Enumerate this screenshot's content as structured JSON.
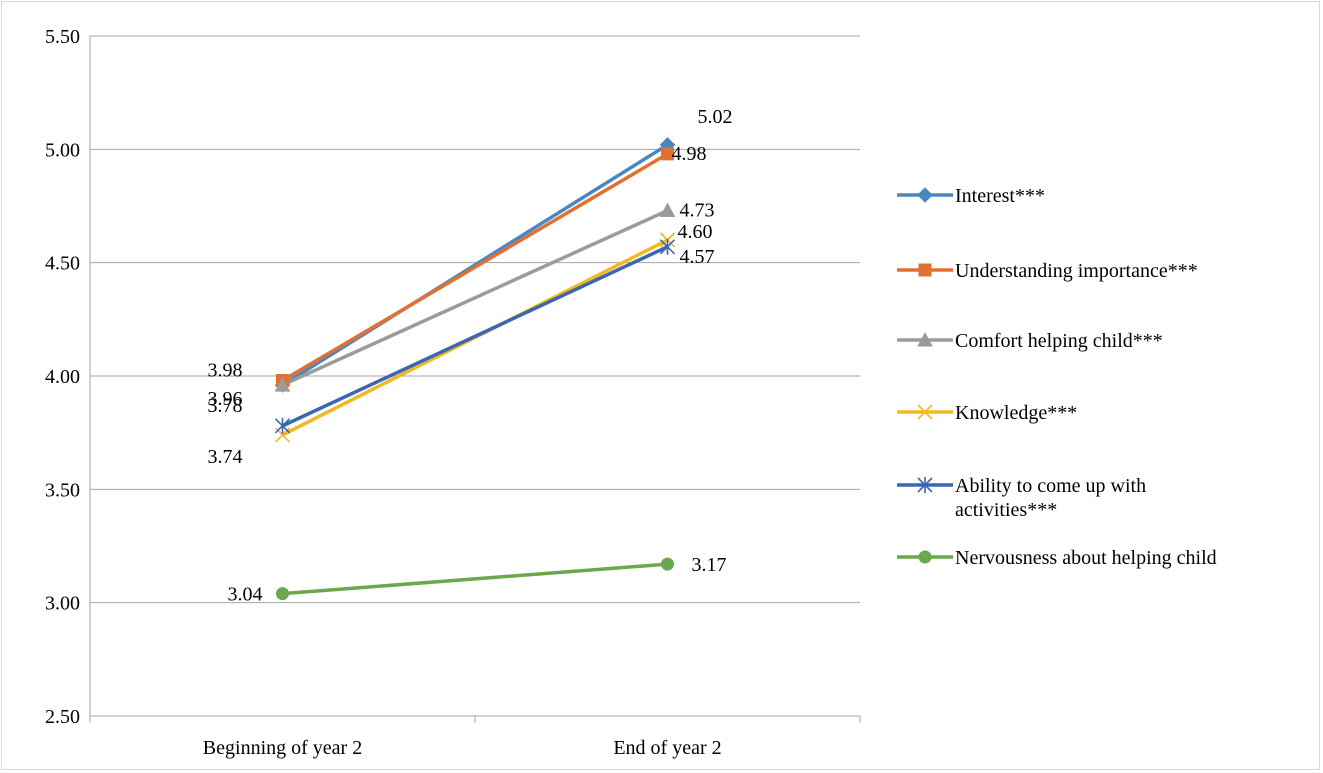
{
  "chart_data": {
    "type": "line",
    "title": "",
    "xlabel": "",
    "ylabel": "",
    "categories": [
      "Beginning of year 2",
      "End of year 2"
    ],
    "ylim": [
      2.5,
      5.5
    ],
    "yticks": [
      "2.50",
      "3.00",
      "3.50",
      "4.00",
      "4.50",
      "5.00",
      "5.50"
    ],
    "grid": true,
    "legend_position": "right",
    "series": [
      {
        "name": "Interest***",
        "values": [
          3.96,
          5.02
        ],
        "labels": [
          "",
          "5.02"
        ],
        "color": "#4a86c0",
        "marker": "diamond"
      },
      {
        "name": "Understanding importance***",
        "values": [
          3.98,
          4.98
        ],
        "labels": [
          "3.98",
          "4.98"
        ],
        "color": "#e07133",
        "marker": "square"
      },
      {
        "name": "Comfort helping child***",
        "values": [
          3.96,
          4.73
        ],
        "labels": [
          "3.96",
          "4.73"
        ],
        "color": "#9b9b9b",
        "marker": "triangle"
      },
      {
        "name": "Knowledge***",
        "values": [
          3.74,
          4.6
        ],
        "labels": [
          "3.74",
          "4.60"
        ],
        "color": "#f2b81f",
        "marker": "x"
      },
      {
        "name": "Ability to come up with activities***",
        "values": [
          3.78,
          4.57
        ],
        "labels": [
          "3.78",
          "4.57"
        ],
        "color": "#3b66b0",
        "marker": "asterisk"
      },
      {
        "name": "Nervousness about helping child",
        "values": [
          3.04,
          3.17
        ],
        "labels": [
          "3.04",
          "3.17"
        ],
        "color": "#6aa84f",
        "marker": "circle"
      }
    ]
  }
}
